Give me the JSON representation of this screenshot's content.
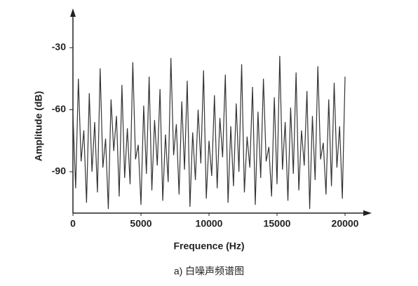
{
  "chart_data": {
    "type": "line",
    "x_label": "Frequence (Hz)",
    "y_label": "Amplitude (dB)",
    "caption": "a) 白噪声频谱图",
    "x": [
      0,
      200,
      400,
      600,
      800,
      1000,
      1200,
      1400,
      1600,
      1800,
      2000,
      2200,
      2400,
      2600,
      2800,
      3000,
      3200,
      3400,
      3600,
      3800,
      4000,
      4200,
      4400,
      4600,
      4800,
      5000,
      5200,
      5400,
      5600,
      5800,
      6000,
      6200,
      6400,
      6600,
      6800,
      7000,
      7200,
      7400,
      7600,
      7800,
      8000,
      8200,
      8400,
      8600,
      8800,
      9000,
      9200,
      9400,
      9600,
      9800,
      10000,
      10200,
      10400,
      10600,
      10800,
      11000,
      11200,
      11400,
      11600,
      11800,
      12000,
      12200,
      12400,
      12600,
      12800,
      13000,
      13200,
      13400,
      13600,
      13800,
      14000,
      14200,
      14400,
      14600,
      14800,
      15000,
      15200,
      15400,
      15600,
      15800,
      16000,
      16200,
      16400,
      16600,
      16800,
      17000,
      17200,
      17400,
      17600,
      17800,
      18000,
      18200,
      18400,
      18600,
      18800,
      19000,
      19200,
      19400,
      19600,
      19800,
      20000
    ],
    "values": [
      -62,
      -98,
      -45,
      -85,
      -70,
      -105,
      -52,
      -90,
      -66,
      -100,
      -40,
      -88,
      -74,
      -108,
      -55,
      -80,
      -63,
      -102,
      -48,
      -93,
      -69,
      -96,
      -37,
      -84,
      -77,
      -106,
      -58,
      -91,
      -44,
      -99,
      -65,
      -87,
      -50,
      -104,
      -72,
      -95,
      -35,
      -82,
      -67,
      -101,
      -56,
      -89,
      -46,
      -107,
      -71,
      -94,
      -60,
      -86,
      -41,
      -103,
      -75,
      -92,
      -53,
      -98,
      -64,
      -83,
      -43,
      -105,
      -68,
      -97,
      -57,
      -90,
      -38,
      -100,
      -73,
      -88,
      -49,
      -106,
      -61,
      -93,
      -45,
      -85,
      -78,
      -102,
      -54,
      -96,
      -34,
      -89,
      -66,
      -104,
      -59,
      -91,
      -42,
      -99,
      -70,
      -87,
      -51,
      -108,
      -63,
      -94,
      -39,
      -84,
      -76,
      -101,
      -55,
      -97,
      -47,
      -88,
      -68,
      -103,
      -44
    ],
    "color": "#333333",
    "xlim": [
      0,
      20000
    ],
    "xticks": [
      0,
      5000,
      10000,
      15000,
      20000
    ],
    "ylim": [
      -110,
      -20
    ],
    "yticks": [
      -30,
      -60,
      -90
    ]
  }
}
